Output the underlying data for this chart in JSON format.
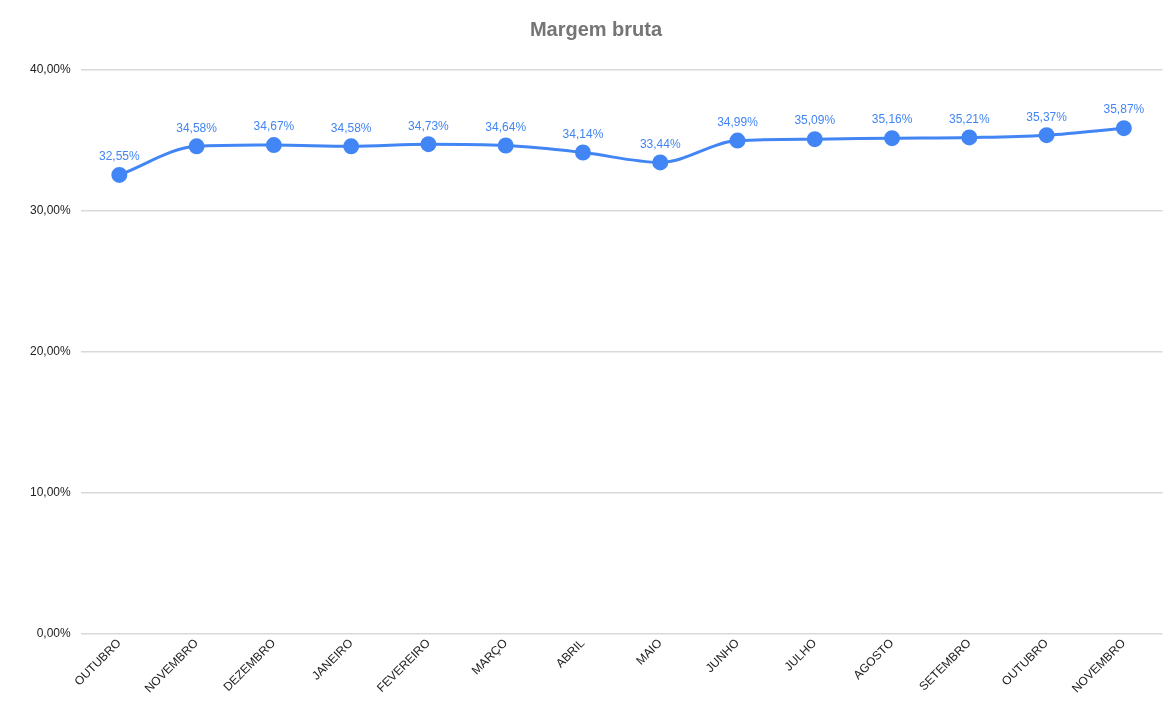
{
  "chart_data": {
    "type": "line",
    "title": "Margem bruta",
    "categories": [
      "OUTUBRO",
      "NOVEMBRO",
      "DEZEMBRO",
      "JANEIRO",
      "FEVEREIRO",
      "MARÇO",
      "ABRIL",
      "MAIO",
      "JUNHO",
      "JULHO",
      "AGOSTO",
      "SETEMBRO",
      "OUTUBRO",
      "NOVEMBRO"
    ],
    "series": [
      {
        "color": "#4285f4",
        "values": [
          32.55,
          34.58,
          34.67,
          34.58,
          34.73,
          34.64,
          34.14,
          33.44,
          34.99,
          35.09,
          35.16,
          35.21,
          35.37,
          35.87
        ],
        "value_labels": [
          "32,55%",
          "34,58%",
          "34,67%",
          "34,58%",
          "34,73%",
          "34,64%",
          "34,14%",
          "33,44%",
          "34,99%",
          "35,09%",
          "35,16%",
          "35,21%",
          "35,37%",
          "35,87%"
        ]
      }
    ],
    "ylim": [
      0,
      40
    ],
    "yticks": [
      {
        "value": 0,
        "label": "0,00%"
      },
      {
        "value": 10,
        "label": "10,00%"
      },
      {
        "value": 20,
        "label": "20,00%"
      },
      {
        "value": 30,
        "label": "30,00%"
      },
      {
        "value": 40,
        "label": "40,00%"
      }
    ],
    "grid": "y",
    "legend": false,
    "marker": "circle",
    "line_style": "solid"
  }
}
